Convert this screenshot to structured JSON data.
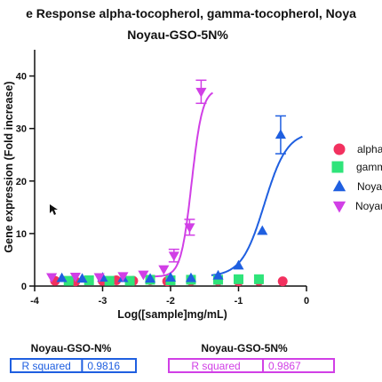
{
  "chart_data": {
    "type": "scatter",
    "title_line1": "e Response alpha-tocopherol, gamma-tocopherol,  Noya",
    "title_line2": "Noyau-GSO-5N%",
    "xlabel": "Log([sample]mg/mL)",
    "ylabel": "Gene expression (Fold increase)",
    "xlim": [
      -4,
      0
    ],
    "ylim": [
      0,
      45
    ],
    "x_ticks": [
      -4,
      -3,
      -2,
      -1,
      0
    ],
    "x_tick_labels": [
      "-4",
      "-3",
      "-2",
      "-1",
      "0"
    ],
    "y_ticks": [
      0,
      10,
      20,
      30,
      40
    ],
    "y_tick_labels": [
      "0",
      "10",
      "20",
      "30",
      "40"
    ],
    "grid": false,
    "legend_position": "right",
    "series": [
      {
        "name": "alpha",
        "color": "#f2315f",
        "marker": "circle",
        "points": [
          {
            "x": -3.7,
            "y": 1.0
          },
          {
            "x": -3.4,
            "y": 0.9
          },
          {
            "x": -3.0,
            "y": 1.0
          },
          {
            "x": -2.8,
            "y": 1.1
          },
          {
            "x": -2.55,
            "y": 1.0
          },
          {
            "x": -2.3,
            "y": 1.1
          },
          {
            "x": -2.05,
            "y": 0.9
          },
          {
            "x": -1.7,
            "y": 1.0
          },
          {
            "x": -1.3,
            "y": 1.0
          },
          {
            "x": -1.0,
            "y": 0.9
          },
          {
            "x": -0.7,
            "y": 1.0
          },
          {
            "x": -0.35,
            "y": 0.9
          }
        ]
      },
      {
        "name": "gamm",
        "color": "#2fe47a",
        "marker": "square",
        "points": [
          {
            "x": -3.5,
            "y": 1.0
          },
          {
            "x": -3.2,
            "y": 1.1
          },
          {
            "x": -2.9,
            "y": 1.0
          },
          {
            "x": -2.6,
            "y": 1.0
          },
          {
            "x": -2.3,
            "y": 1.2
          },
          {
            "x": -2.0,
            "y": 1.1
          },
          {
            "x": -1.7,
            "y": 1.2
          },
          {
            "x": -1.3,
            "y": 1.2
          },
          {
            "x": -1.0,
            "y": 1.3
          },
          {
            "x": -0.7,
            "y": 1.3
          }
        ]
      },
      {
        "name": "Noyau",
        "color": "#1f5fe0",
        "marker": "triangle-up",
        "ec50": -0.62,
        "bottom": 1.8,
        "top": 29.4,
        "hill": 2.6,
        "points": [
          {
            "x": -3.6,
            "y": 1.5,
            "err": 0.3
          },
          {
            "x": -3.3,
            "y": 1.4,
            "err": 0.3
          },
          {
            "x": -3.0,
            "y": 1.6,
            "err": 0.3
          },
          {
            "x": -2.7,
            "y": 1.5,
            "err": 0.3
          },
          {
            "x": -2.3,
            "y": 1.4,
            "err": 0.3
          },
          {
            "x": -2.0,
            "y": 1.6,
            "err": 0.3
          },
          {
            "x": -1.7,
            "y": 1.5,
            "err": 0.3
          },
          {
            "x": -1.3,
            "y": 2.0,
            "err": 0.3
          },
          {
            "x": -1.0,
            "y": 3.9,
            "err": 0.4
          },
          {
            "x": -0.65,
            "y": 10.5,
            "err": 0.5
          },
          {
            "x": -0.38,
            "y": 28.8,
            "err": 3.6
          }
        ]
      },
      {
        "name": "Noyau",
        "color": "#d13fe6",
        "marker": "triangle-down",
        "ec50": -1.69,
        "bottom": 1.8,
        "top": 37.5,
        "hill": 5.5,
        "points": [
          {
            "x": -3.75,
            "y": 1.7,
            "err": 0.3
          },
          {
            "x": -3.4,
            "y": 1.8,
            "err": 0.3
          },
          {
            "x": -3.05,
            "y": 1.7,
            "err": 0.3
          },
          {
            "x": -2.7,
            "y": 1.9,
            "err": 0.3
          },
          {
            "x": -2.4,
            "y": 2.2,
            "err": 0.4
          },
          {
            "x": -2.1,
            "y": 3.2,
            "err": 0.5
          },
          {
            "x": -1.95,
            "y": 5.8,
            "err": 1.2
          },
          {
            "x": -1.72,
            "y": 11.2,
            "err": 1.5
          },
          {
            "x": -1.55,
            "y": 37.0,
            "err": 2.2
          }
        ]
      }
    ]
  },
  "stats_tables": [
    {
      "title": "Noyau-GSO-N%",
      "label": "R squared",
      "value": "0.9816",
      "color": "#1f5fe0"
    },
    {
      "title": "Noyau-GSO-5N%",
      "label": "R squared",
      "value": "0.9867",
      "color": "#d13fe6"
    }
  ]
}
